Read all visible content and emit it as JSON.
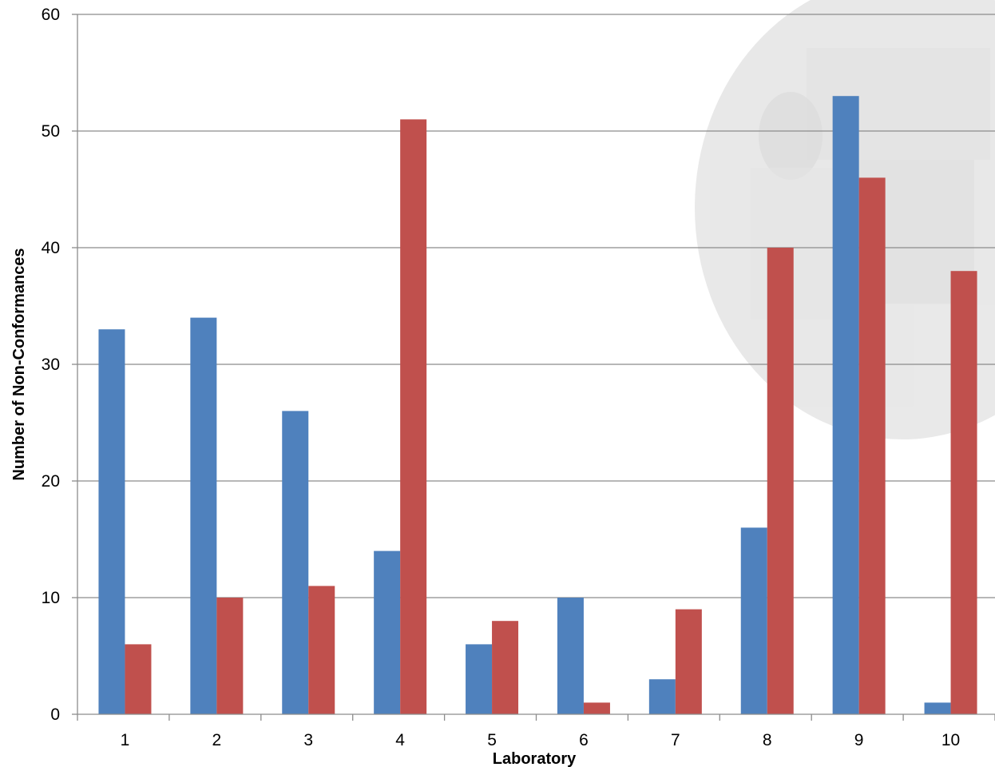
{
  "chart_data": {
    "type": "bar",
    "title": "",
    "xlabel": "Laboratory",
    "ylabel": "Number of Non-Conformances",
    "categories": [
      "1",
      "2",
      "3",
      "4",
      "5",
      "6",
      "7",
      "8",
      "9",
      "10"
    ],
    "series": [
      {
        "color": "#4F81BD",
        "values": [
          33,
          34,
          26,
          14,
          6,
          10,
          3,
          16,
          53,
          1
        ]
      },
      {
        "color": "#C0504D",
        "values": [
          6,
          10,
          11,
          51,
          8,
          1,
          9,
          40,
          46,
          38
        ]
      }
    ],
    "ylim": [
      0,
      60
    ],
    "yticks": [
      "0",
      "10",
      "20",
      "30",
      "40",
      "50",
      "60"
    ],
    "grid": true,
    "legend": "none"
  }
}
